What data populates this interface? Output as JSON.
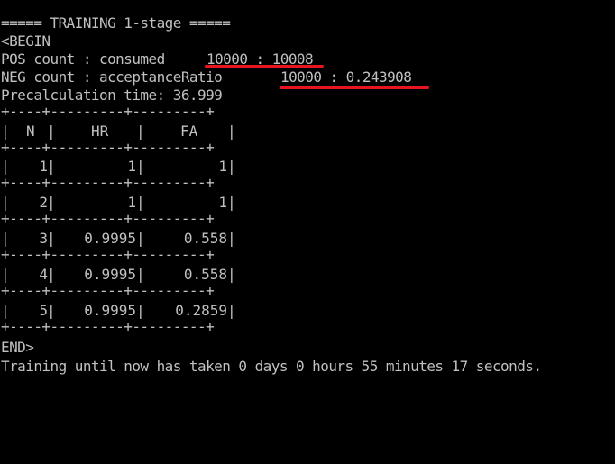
{
  "terminal": {
    "header": "===== TRAINING 1-stage =====",
    "begin": "<BEGIN",
    "pos_label": "POS count : consumed",
    "pos_value": "10000 : 10008",
    "neg_label": "NEG count : acceptanceRatio",
    "neg_value": "10000 : 0.243908",
    "precalc": "Precalculation time: 36.999",
    "table_border": "+----+---------+---------+",
    "table": {
      "headers": [
        "N",
        "HR",
        "FA"
      ],
      "rows": [
        {
          "n": "1",
          "hr": "1",
          "fa": "1"
        },
        {
          "n": "2",
          "hr": "1",
          "fa": "1"
        },
        {
          "n": "3",
          "hr": "0.9995",
          "fa": "0.558"
        },
        {
          "n": "4",
          "hr": "0.9995",
          "fa": "0.558"
        },
        {
          "n": "5",
          "hr": "0.9995",
          "fa": "0.2859"
        }
      ]
    },
    "end": "END>",
    "training_time": "Training until now has taken 0 days 0 hours 55 minutes 17 seconds."
  },
  "colors": {
    "background": "#000000",
    "text": "#c0c0c0",
    "annotation": "#e8141e"
  }
}
